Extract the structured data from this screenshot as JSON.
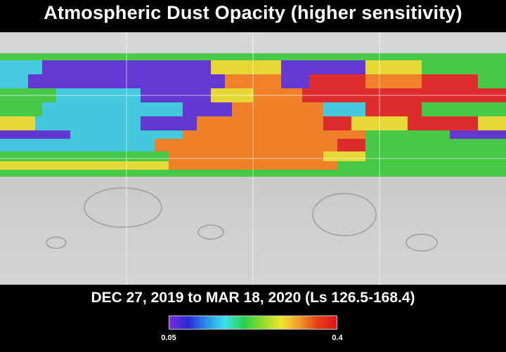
{
  "title": "Atmospheric Dust Opacity (higher sensitivity)",
  "subtitle": "DEC 27, 2019 to MAR 18, 2020 (Ls 126.5-168.4)",
  "legend": {
    "min_label": "0.05",
    "max_label": "0.4",
    "colors": [
      "#7a2be0",
      "#2a2ad8",
      "#2a8fe8",
      "#38e4e8",
      "#2ad04a",
      "#8fdc2a",
      "#f0e62a",
      "#f09a2a",
      "#e83a1a",
      "#e01414"
    ]
  },
  "map": {
    "basemap": "gray shaded relief",
    "dust_colors": {
      "low": "#5a2ad0",
      "mid": "#38c8e0",
      "green": "#3cc83c",
      "yellow": "#e8d82a",
      "orange": "#f07a1a",
      "high": "#e01e1e"
    }
  }
}
